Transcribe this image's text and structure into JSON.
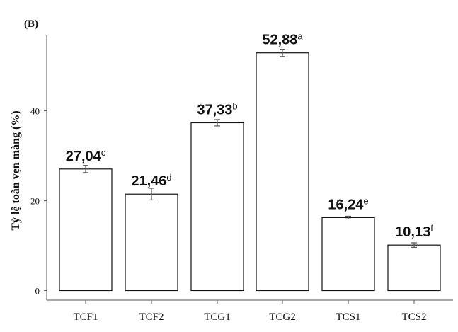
{
  "chart_data": {
    "type": "bar",
    "panel_label": "(B)",
    "ylabel": "Tỷ lệ toàn vẹn màng (%)",
    "xlabel": "",
    "title": "",
    "ylim": [
      0,
      57
    ],
    "yticks": [
      0,
      20,
      40
    ],
    "grid": false,
    "categories": [
      "TCF1",
      "TCF2",
      "TCG1",
      "TCG2",
      "TCS1",
      "TCS2"
    ],
    "values": [
      27.04,
      21.46,
      37.33,
      52.88,
      16.24,
      10.13
    ],
    "errors": [
      0.8,
      1.3,
      0.7,
      0.8,
      0.3,
      0.5
    ],
    "value_labels": [
      "27,04",
      "21,46",
      "37,33",
      "52,88",
      "16,24",
      "10,13"
    ],
    "superscripts": [
      "c",
      "d",
      "b",
      "a",
      "e",
      "f"
    ],
    "bar_fill": "#ffffff",
    "bar_stroke": "#111111",
    "error_color": "#555555"
  }
}
